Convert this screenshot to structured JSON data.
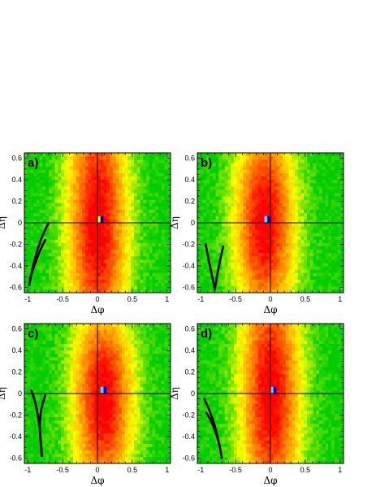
{
  "chart_data": [
    {
      "type": "heatmap",
      "panel_label": "a)",
      "xlabel": "Δφ",
      "ylabel": "Δη",
      "xlim": [
        -1.05,
        1.05
      ],
      "ylim": [
        -0.65,
        0.65
      ],
      "x_ticks": [
        "-1",
        "-0.5",
        "0",
        "0.5",
        "1"
      ],
      "y_ticks": [
        "-0.6",
        "-0.4",
        "-0.2",
        "0",
        "0.2",
        "0.4",
        "0.6"
      ],
      "bins": [
        48,
        42
      ],
      "peak_center": [
        0.0,
        0.0
      ],
      "eta_elongation": 0.6,
      "colormap": [
        "#00cc00",
        "#ffff00",
        "#ff8800",
        "#ff0000"
      ],
      "center_stripes": [
        "#ffff00",
        "#0000cc"
      ],
      "reference_lines": {
        "x": 0,
        "y": 0
      },
      "curves": [
        [
          [
            -0.7,
            0.0
          ],
          [
            -0.83,
            -0.15
          ],
          [
            -0.92,
            -0.35
          ],
          [
            -0.98,
            -0.58
          ]
        ],
        [
          [
            -0.75,
            -0.16
          ],
          [
            -0.85,
            -0.28
          ],
          [
            -0.92,
            -0.42
          ],
          [
            -0.97,
            -0.52
          ]
        ]
      ]
    },
    {
      "type": "heatmap",
      "panel_label": "b)",
      "xlabel": "Δφ",
      "ylabel": "Δη",
      "xlim": [
        -1.05,
        1.05
      ],
      "ylim": [
        -0.65,
        0.65
      ],
      "x_ticks": [
        "-1",
        "-0.5",
        "0",
        "0.5",
        "1"
      ],
      "y_ticks": [
        "-0.6",
        "-0.4",
        "-0.2",
        "0",
        "0.2",
        "0.4",
        "0.6"
      ],
      "bins": [
        48,
        42
      ],
      "peak_center": [
        -0.08,
        0.0
      ],
      "eta_elongation": 0.45,
      "colormap": [
        "#00cc00",
        "#ffff00",
        "#ff8800",
        "#ff0000"
      ],
      "center_stripes": [
        "#66ccff",
        "#0000cc"
      ],
      "reference_lines": {
        "x": 0,
        "y": 0
      },
      "curves": [
        [
          [
            -0.68,
            -0.22
          ],
          [
            -0.73,
            -0.36
          ],
          [
            -0.77,
            -0.5
          ],
          [
            -0.8,
            -0.62
          ]
        ],
        [
          [
            -0.8,
            -0.62
          ],
          [
            -0.85,
            -0.45
          ],
          [
            -0.9,
            -0.32
          ],
          [
            -0.93,
            -0.2
          ]
        ]
      ]
    },
    {
      "type": "heatmap",
      "panel_label": "c)",
      "xlabel": "Δφ",
      "ylabel": "Δη",
      "xlim": [
        -1.05,
        1.05
      ],
      "ylim": [
        -0.65,
        0.65
      ],
      "x_ticks": [
        "-1",
        "-0.5",
        "0",
        "0.5",
        "1"
      ],
      "y_ticks": [
        "-0.6",
        "-0.4",
        "-0.2",
        "0",
        "0.2",
        "0.4",
        "0.6"
      ],
      "bins": [
        48,
        42
      ],
      "peak_center": [
        0.08,
        -0.05
      ],
      "eta_elongation": 0.42,
      "colormap": [
        "#00cc00",
        "#ffff00",
        "#ff8800",
        "#ff0000"
      ],
      "center_stripes": [
        "#66ccff",
        "#0000cc"
      ],
      "reference_lines": {
        "x": 0,
        "y": 0
      },
      "curves": [
        [
          [
            -0.95,
            0.03
          ],
          [
            -0.87,
            -0.1
          ],
          [
            -0.82,
            -0.3
          ],
          [
            -0.8,
            -0.58
          ]
        ],
        [
          [
            -0.8,
            -0.58
          ],
          [
            -0.83,
            -0.35
          ],
          [
            -0.86,
            -0.2
          ],
          [
            -0.75,
            -0.02
          ]
        ]
      ]
    },
    {
      "type": "heatmap",
      "panel_label": "d)",
      "xlabel": "Δφ",
      "ylabel": "Δη",
      "xlim": [
        -1.05,
        1.05
      ],
      "ylim": [
        -0.65,
        0.65
      ],
      "x_ticks": [
        "-1",
        "-0.5",
        "0",
        "0.5",
        "1"
      ],
      "y_ticks": [
        "-0.6",
        "-0.4",
        "-0.2",
        "0",
        "0.2",
        "0.4",
        "0.6"
      ],
      "bins": [
        48,
        42
      ],
      "peak_center": [
        0.0,
        0.0
      ],
      "eta_elongation": 0.55,
      "colormap": [
        "#00cc00",
        "#ffff00",
        "#ff8800",
        "#ff0000"
      ],
      "center_stripes": [
        "#66ccff",
        "#0000cc"
      ],
      "reference_lines": {
        "x": 0,
        "y": 0
      },
      "curves": [
        [
          [
            -0.95,
            -0.05
          ],
          [
            -0.85,
            -0.18
          ],
          [
            -0.76,
            -0.35
          ],
          [
            -0.7,
            -0.6
          ]
        ],
        [
          [
            -0.92,
            -0.18
          ],
          [
            -0.82,
            -0.28
          ],
          [
            -0.76,
            -0.4
          ],
          [
            -0.72,
            -0.52
          ]
        ]
      ]
    }
  ]
}
